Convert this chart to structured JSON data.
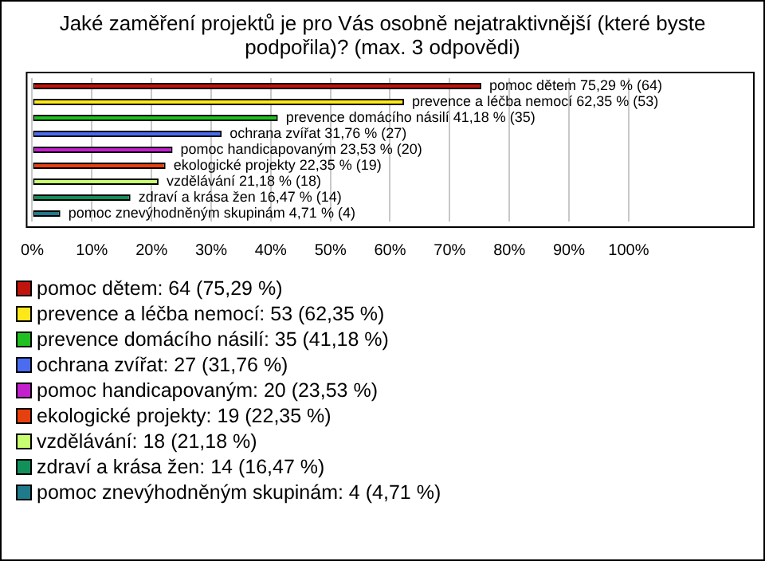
{
  "chart_data": {
    "type": "bar",
    "orientation": "horizontal",
    "stacked": true,
    "title": "Jaké zaměření projektů je pro Vás osobně nejatraktivnější (které byste podpořila)? (max. 3 odpovědi)",
    "categories": [
      null,
      null,
      null,
      null,
      null,
      null,
      null,
      null,
      null
    ],
    "series": [
      {
        "name": "pomoc dětem: 64 (75,29 %)",
        "color": "#c0140c",
        "values": [
          75.29,
          null,
          null,
          null,
          null,
          null,
          null,
          null,
          null
        ],
        "value_labels": [
          "pomoc dětem 75,29 % (64)",
          null,
          null,
          null,
          null,
          null,
          null,
          null,
          null
        ]
      },
      {
        "name": "prevence a léčba nemocí: 53 (62,35 %)",
        "color": "#ffe81a",
        "values": [
          null,
          62.35,
          null,
          null,
          null,
          null,
          null,
          null,
          null
        ],
        "value_labels": [
          null,
          "prevence a léčba nemocí 62,35 % (53)",
          null,
          null,
          null,
          null,
          null,
          null,
          null
        ]
      },
      {
        "name": "prevence domácího násilí: 35 (41,18 %)",
        "color": "#1fc01f",
        "values": [
          null,
          null,
          41.18,
          null,
          null,
          null,
          null,
          null,
          null
        ],
        "value_labels": [
          null,
          null,
          "prevence domácího násilí 41,18 % (35)",
          null,
          null,
          null,
          null,
          null,
          null
        ]
      },
      {
        "name": "ochrana zvířat: 27 (31,76 %)",
        "color": "#4a6cf0",
        "values": [
          null,
          null,
          null,
          31.76,
          null,
          null,
          null,
          null,
          null
        ],
        "value_labels": [
          null,
          null,
          null,
          "ochrana zvířat 31,76 % (27)",
          null,
          null,
          null,
          null,
          null
        ]
      },
      {
        "name": "pomoc handicapovaným: 20 (23,53 %)",
        "color": "#c41fcf",
        "values": [
          null,
          null,
          null,
          null,
          23.53,
          null,
          null,
          null,
          null
        ],
        "value_labels": [
          null,
          null,
          null,
          null,
          "pomoc handicapovaným 23,53 % (20)",
          null,
          null,
          null,
          null
        ]
      },
      {
        "name": "ekologické projekty: 19 (22,35 %)",
        "color": "#e6400f",
        "values": [
          null,
          null,
          null,
          null,
          null,
          22.35,
          null,
          null,
          null
        ],
        "value_labels": [
          null,
          null,
          null,
          null,
          null,
          "ekologické projekty 22,35 % (19)",
          null,
          null,
          null
        ]
      },
      {
        "name": "vzdělávání: 18 (21,18 %)",
        "color": "#c8ff70",
        "values": [
          null,
          null,
          null,
          null,
          null,
          null,
          21.18,
          null,
          null
        ],
        "value_labels": [
          null,
          null,
          null,
          null,
          null,
          null,
          "vzdělávání 21,18 % (18)",
          null,
          null
        ]
      },
      {
        "name": "zdraví a krása žen: 14 (16,47 %)",
        "color": "#13905a",
        "values": [
          null,
          null,
          null,
          null,
          null,
          null,
          null,
          16.47,
          null
        ],
        "value_labels": [
          null,
          null,
          null,
          null,
          null,
          null,
          null,
          "zdraví a krása žen 16,47 % (14)",
          null
        ]
      },
      {
        "name": "pomoc znevýhodněným skupinám: 4 (4,71 %)",
        "color": "#1f7a8c",
        "values": [
          null,
          null,
          null,
          null,
          null,
          null,
          null,
          null,
          4.71
        ],
        "value_labels": [
          null,
          null,
          null,
          null,
          null,
          null,
          null,
          null,
          "pomoc znevýhodněným skupinám 4,71 % (4)"
        ]
      }
    ],
    "xlim": [
      0,
      121
    ],
    "xticks": [
      {
        "value": 0,
        "label": "0%"
      },
      {
        "value": 10,
        "label": "10%"
      },
      {
        "value": 20,
        "label": "20%"
      },
      {
        "value": 30,
        "label": "30%"
      },
      {
        "value": 40,
        "label": "40%"
      },
      {
        "value": 50,
        "label": "50%"
      },
      {
        "value": 60,
        "label": "60%"
      },
      {
        "value": 70,
        "label": "70%"
      },
      {
        "value": 80,
        "label": "80%"
      },
      {
        "value": 90,
        "label": "90%"
      },
      {
        "value": 100,
        "label": "100%"
      }
    ],
    "grid": "x",
    "tick_labels": "x",
    "legend": "bottom"
  }
}
